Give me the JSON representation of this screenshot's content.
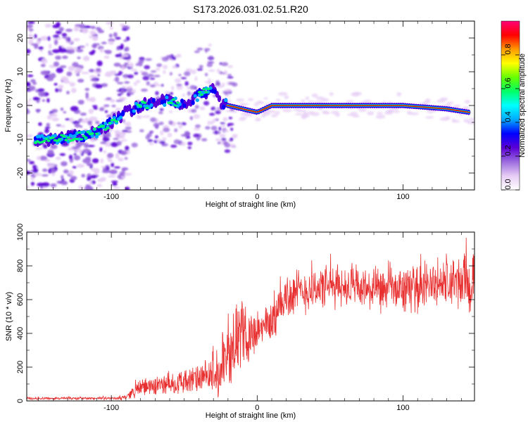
{
  "title": "S173.2026.031.02.51.R20",
  "chart_data": [
    {
      "type": "heatmap",
      "title": "S173.2026.031.02.51.R20",
      "xlabel": "Height of straight line (km)",
      "ylabel": "Frequency (Hz)",
      "xlim": [
        -158,
        149
      ],
      "ylim": [
        -25,
        25
      ],
      "x_ticks": [
        -100,
        0,
        100
      ],
      "x_tick_labels": [
        "-100",
        "0",
        "100"
      ],
      "y_ticks": [
        -20,
        -10,
        0,
        10,
        20
      ],
      "y_tick_labels": [
        "-20",
        "-10",
        "0",
        "10",
        "20"
      ],
      "ridge": [
        {
          "x": -150,
          "y": -10.0
        },
        {
          "x": -140,
          "y": -10.0
        },
        {
          "x": -130,
          "y": -9.5
        },
        {
          "x": -120,
          "y": -9.0
        },
        {
          "x": -110,
          "y": -8.0
        },
        {
          "x": -100,
          "y": -5.0
        },
        {
          "x": -90,
          "y": -2.0
        },
        {
          "x": -80,
          "y": 0.0
        },
        {
          "x": -70,
          "y": 1.0
        },
        {
          "x": -60,
          "y": 1.5
        },
        {
          "x": -50,
          "y": 0.5
        },
        {
          "x": -40,
          "y": 3.0
        },
        {
          "x": -30,
          "y": 5.0
        },
        {
          "x": -25,
          "y": 1.0
        },
        {
          "x": -20,
          "y": 0.0
        },
        {
          "x": 0,
          "y": -2.0
        },
        {
          "x": 10,
          "y": 0.0
        },
        {
          "x": 50,
          "y": 0.0
        },
        {
          "x": 100,
          "y": 0.0
        },
        {
          "x": 130,
          "y": -1.0
        },
        {
          "x": 145,
          "y": -2.0
        }
      ],
      "colorbar": {
        "label": "Normalized spectral amplitude",
        "range": [
          0,
          1
        ],
        "ticks": [
          0.0,
          0.2,
          0.4,
          0.6,
          0.8
        ],
        "tick_labels": [
          "0.0",
          "0.2",
          "0.4",
          "0.6",
          "0.8"
        ],
        "colors": [
          "#ffffff",
          "#e6ccf5",
          "#9b6bdf",
          "#5b00d6",
          "#0000ff",
          "#00aaff",
          "#00ffff",
          "#00ff66",
          "#66ff00",
          "#ffff00",
          "#ff9900",
          "#ff0000",
          "#ff0077"
        ]
      }
    },
    {
      "type": "line",
      "xlabel": "Height of straight line (km)",
      "ylabel": "SNR (10 * v/v)",
      "xlim": [
        -158,
        149
      ],
      "ylim": [
        0,
        1000
      ],
      "x_ticks": [
        -100,
        0,
        100
      ],
      "x_tick_labels": [
        "-100",
        "0",
        "100"
      ],
      "y_ticks": [
        0,
        200,
        400,
        600,
        800,
        1000
      ],
      "y_tick_labels": [
        "0",
        "200",
        "400",
        "600",
        "800",
        "1000"
      ],
      "series": [
        {
          "name": "SNR",
          "color": "#e83030",
          "envelope": [
            {
              "x": -158,
              "mean": 15,
              "noise": 10
            },
            {
              "x": -95,
              "mean": 15,
              "noise": 10
            },
            {
              "x": -90,
              "mean": 25,
              "noise": 20
            },
            {
              "x": -80,
              "mean": 80,
              "noise": 60
            },
            {
              "x": -60,
              "mean": 100,
              "noise": 80
            },
            {
              "x": -40,
              "mean": 130,
              "noise": 100
            },
            {
              "x": -25,
              "mean": 150,
              "noise": 150
            },
            {
              "x": -15,
              "mean": 380,
              "noise": 250
            },
            {
              "x": 0,
              "mean": 400,
              "noise": 150
            },
            {
              "x": 10,
              "mean": 480,
              "noise": 150
            },
            {
              "x": 20,
              "mean": 620,
              "noise": 180
            },
            {
              "x": 40,
              "mean": 670,
              "noise": 150
            },
            {
              "x": 60,
              "mean": 680,
              "noise": 150
            },
            {
              "x": 80,
              "mean": 650,
              "noise": 150
            },
            {
              "x": 100,
              "mean": 660,
              "noise": 160
            },
            {
              "x": 120,
              "mean": 690,
              "noise": 170
            },
            {
              "x": 140,
              "mean": 700,
              "noise": 200
            },
            {
              "x": 149,
              "mean": 680,
              "noise": 220
            }
          ]
        }
      ]
    }
  ]
}
